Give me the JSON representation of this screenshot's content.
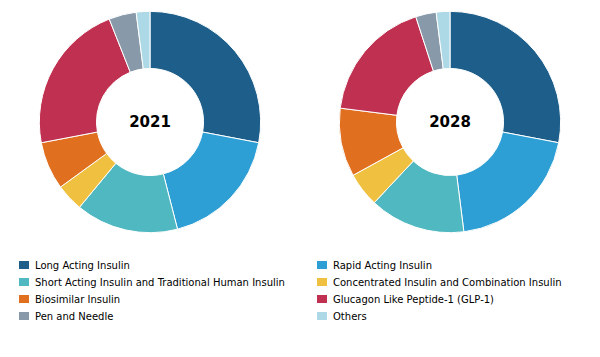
{
  "chart_data": [
    {
      "type": "pie",
      "title": "2021",
      "categories": [
        "Long Acting Insulin",
        "Rapid Acting Insulin",
        "Short Acting Insulin and Traditional Human Insulin",
        "Concentrated Insulin and Combination Insulin",
        "Biosimilar Insulin",
        "Glucagon Like Peptide-1 (GLP-1)",
        "Pen and Needle",
        "Others"
      ],
      "values": [
        28,
        18,
        15,
        4,
        7,
        22,
        4,
        2
      ],
      "colors": [
        "#1d5f8a",
        "#2e9fd4",
        "#50b8c1",
        "#f0c040",
        "#e07020",
        "#c03050",
        "#8899aa",
        "#add8e6"
      ],
      "legend": "bottom"
    },
    {
      "type": "pie",
      "title": "2028",
      "categories": [
        "Long Acting Insulin",
        "Rapid Acting Insulin",
        "Short Acting Insulin and Traditional Human Insulin",
        "Concentrated Insulin and Combination Insulin",
        "Biosimilar Insulin",
        "Glucagon Like Peptide-1 (GLP-1)",
        "Pen and Needle",
        "Others"
      ],
      "values": [
        28,
        20,
        14,
        5,
        10,
        18,
        3,
        2
      ],
      "colors": [
        "#1d5f8a",
        "#2e9fd4",
        "#50b8c1",
        "#f0c040",
        "#e07020",
        "#c03050",
        "#8899aa",
        "#add8e6"
      ],
      "legend": "bottom"
    }
  ]
}
